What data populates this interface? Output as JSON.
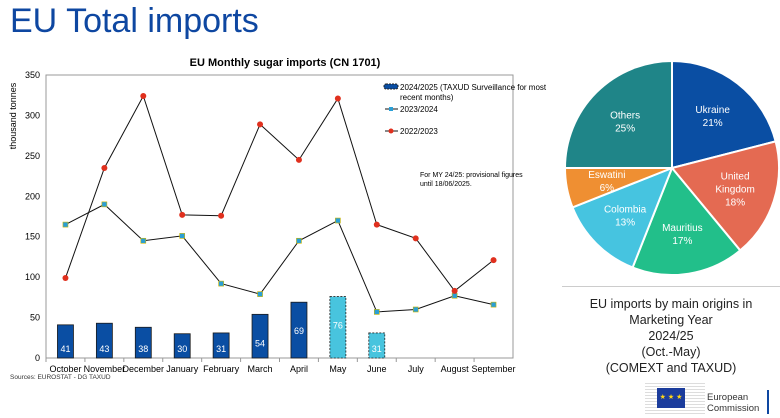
{
  "page_title": "EU Total imports",
  "chart_data": [
    {
      "type": "bar+line",
      "title": "EU Monthly sugar imports (CN 1701)",
      "ylabel": "thousand tonnes",
      "ylim": [
        0,
        350
      ],
      "yticks": [
        0,
        50,
        100,
        150,
        200,
        250,
        300,
        350
      ],
      "categories": [
        "October",
        "November",
        "December",
        "January",
        "February",
        "March",
        "April",
        "May",
        "June",
        "July",
        "August",
        "September"
      ],
      "series": [
        {
          "name": "2024/2025 (TAXUD Surveillance for most recent months)",
          "kind": "bar",
          "values": [
            41,
            43,
            38,
            30,
            31,
            54,
            69,
            76,
            31,
            null,
            null,
            null
          ],
          "provisional": [
            false,
            false,
            false,
            false,
            false,
            false,
            false,
            true,
            true,
            false,
            false,
            false
          ],
          "color": "#0a4ea3",
          "provisional_color": "#48c4de"
        },
        {
          "name": "2023/2024",
          "kind": "line",
          "marker": "square",
          "values": [
            165,
            190,
            145,
            151,
            92,
            79,
            145,
            170,
            57,
            60,
            77,
            66
          ],
          "marker_color": "#2a9fd6"
        },
        {
          "name": "2022/2023",
          "kind": "line",
          "marker": "circle",
          "values": [
            99,
            235,
            324,
            177,
            176,
            289,
            245,
            321,
            165,
            148,
            83,
            121
          ],
          "marker_color": "#e0301e"
        }
      ],
      "legend_labels": [
        "2024/2025 (TAXUD Surveillance for most",
        "recent months)",
        "2023/2024",
        "2022/2023"
      ],
      "legend_position": "top-right",
      "annotation": [
        "For MY 24/25: provisional figures",
        "until 18/06/2025."
      ],
      "source": "Sources: EUROSTAT  - DG TAXUD"
    },
    {
      "type": "pie",
      "slices": [
        {
          "label": "Ukraine",
          "value": 21,
          "text": "21%",
          "color": "#0a4ea3"
        },
        {
          "label": "United Kingdom",
          "value": 18,
          "text": "18%",
          "color": "#e46a52"
        },
        {
          "label": "Mauritius",
          "value": 17,
          "text": "17%",
          "color": "#22bf8a"
        },
        {
          "label": "Colombia",
          "value": 13,
          "text": "13%",
          "color": "#46c4e0"
        },
        {
          "label": "Eswatini",
          "value": 6,
          "text": "6%",
          "color": "#ef8f32"
        },
        {
          "label": "Others",
          "value": 25,
          "text": "25%",
          "color": "#1f8588"
        }
      ],
      "caption": [
        "EU imports by main origins in Marketing Year",
        "2024/25",
        "(Oct.-May)",
        "(COMEXT and TAXUD)"
      ]
    }
  ],
  "logo": {
    "line1": "European",
    "line2": "Commission"
  }
}
